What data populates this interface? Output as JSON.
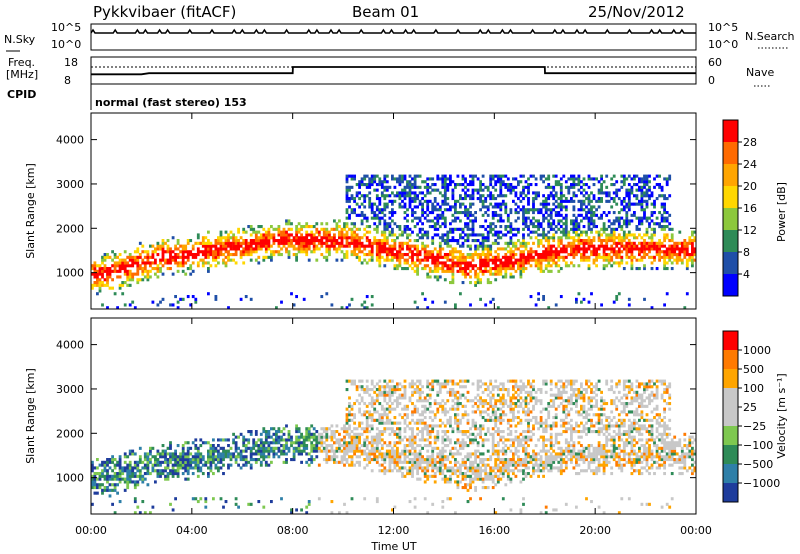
{
  "header": {
    "radar": "Pykkvibaer (fitACF)",
    "beam": "Beam 01",
    "date": "25/Nov/2012"
  },
  "status_panels": {
    "nsky_label": "N.Sky",
    "nsearch_label": "N.Search",
    "noise_ticks_left": [
      "10^5",
      "10^0"
    ],
    "noise_ticks_right": [
      "10^5",
      "10^0"
    ],
    "freq_label_top": "Freq.",
    "freq_label_units": "[MHz]",
    "freq_ticks": [
      "18",
      "8"
    ],
    "nave_label": "Nave",
    "nave_ticks": [
      "60",
      "0"
    ],
    "cpid_label": "CPID",
    "cpid_text": "normal (fast stereo) 153"
  },
  "chart_data": [
    {
      "type": "heatmap",
      "name": "power",
      "ylabel": "Slant Range [km]",
      "yticks": [
        1000,
        2000,
        3000,
        4000
      ],
      "ylim": [
        180,
        4600
      ],
      "colorbar_label": "Power [dB]",
      "colorbar_ticks": [
        "28",
        "24",
        "20",
        "16",
        "12",
        "8",
        "4"
      ],
      "colors": [
        "#0000ff",
        "#1f4fa8",
        "#2e8b57",
        "#8cc83c",
        "#ffd700",
        "#ffa500",
        "#ff6a00",
        "#ff0000"
      ]
    },
    {
      "type": "heatmap",
      "name": "velocity",
      "ylabel": "Slant Range [km]",
      "yticks": [
        1000,
        2000,
        3000,
        4000
      ],
      "ylim": [
        180,
        4600
      ],
      "colorbar_label": "Velocity [m s⁻¹]",
      "colorbar_ticks": [
        "1000",
        "500",
        "100",
        "25",
        "−25",
        "−100",
        "−500",
        "−1000"
      ],
      "colors": [
        "#1e3c9c",
        "#2e7fa8",
        "#2e8b57",
        "#7ec850",
        "#c8c8c8",
        "#c8c8c8",
        "#ffa500",
        "#ff7a00",
        "#ff0000"
      ]
    }
  ],
  "x_axis": {
    "label": "Time UT",
    "ticks": [
      "00:00",
      "04:00",
      "08:00",
      "12:00",
      "16:00",
      "20:00",
      "00:00"
    ],
    "range_hours": [
      0,
      24
    ]
  },
  "series_info": {
    "freq_mhz": {
      "x_hours": [
        0,
        2.0,
        2.3,
        8.0,
        8.01,
        18.0,
        18.01,
        24
      ],
      "values": [
        11.6,
        11.6,
        12.0,
        12.0,
        14.3,
        14.3,
        12.0,
        12.0
      ]
    },
    "nave_dotted_level": 40
  }
}
